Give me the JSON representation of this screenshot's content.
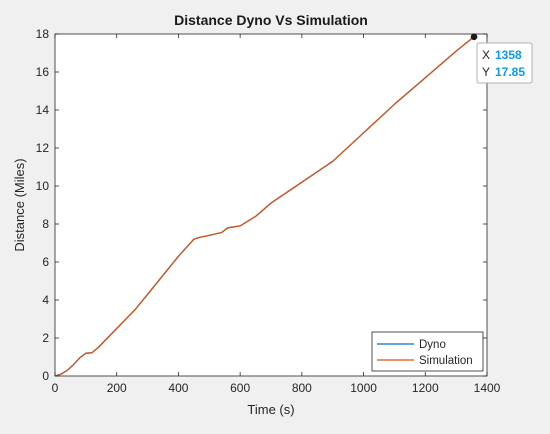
{
  "chart_data": {
    "type": "line",
    "title": "Distance Dyno Vs Simulation",
    "xlabel": "Time (s)",
    "ylabel": "Distance (Miles)",
    "xlim": [
      0,
      1400
    ],
    "ylim": [
      0,
      18
    ],
    "x_ticks": [
      "0",
      "200",
      "400",
      "600",
      "800",
      "1000",
      "1200",
      "1400"
    ],
    "y_ticks": [
      "0",
      "2",
      "4",
      "6",
      "8",
      "10",
      "12",
      "14",
      "16",
      "18"
    ],
    "grid": false,
    "legend_position": "bottom-right",
    "series": [
      {
        "name": "Dyno",
        "color": "#0072bd",
        "x": [
          0,
          20,
          40,
          60,
          80,
          100,
          120,
          140,
          200,
          260,
          300,
          350,
          400,
          450,
          470,
          500,
          540,
          560,
          600,
          650,
          700,
          800,
          900,
          1000,
          1100,
          1200,
          1300,
          1358
        ],
        "y": [
          0,
          0.1,
          0.3,
          0.6,
          0.95,
          1.2,
          1.22,
          1.5,
          2.5,
          3.5,
          4.3,
          5.3,
          6.3,
          7.2,
          7.3,
          7.4,
          7.55,
          7.8,
          7.9,
          8.4,
          9.1,
          10.2,
          11.3,
          12.8,
          14.3,
          15.7,
          17.1,
          17.85
        ]
      },
      {
        "name": "Simulation",
        "color": "#d95319",
        "x": [
          0,
          20,
          40,
          60,
          80,
          100,
          120,
          140,
          200,
          260,
          300,
          350,
          400,
          450,
          470,
          500,
          540,
          560,
          600,
          650,
          700,
          800,
          900,
          1000,
          1100,
          1200,
          1300,
          1358
        ],
        "y": [
          0,
          0.1,
          0.3,
          0.6,
          0.95,
          1.2,
          1.22,
          1.5,
          2.5,
          3.5,
          4.3,
          5.3,
          6.3,
          7.2,
          7.3,
          7.4,
          7.55,
          7.8,
          7.9,
          8.4,
          9.1,
          10.2,
          11.3,
          12.8,
          14.3,
          15.7,
          17.1,
          17.85
        ]
      }
    ],
    "datatip": {
      "x_label": "X",
      "x_value": "1358",
      "y_label": "Y",
      "y_value": "17.85",
      "value_color": "#0b9be6"
    }
  }
}
